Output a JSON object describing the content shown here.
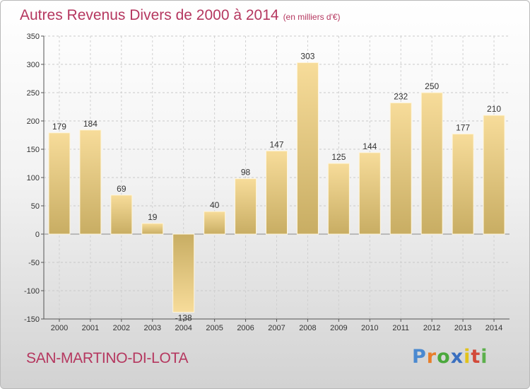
{
  "header": {
    "title": "Autres Revenus Divers de 2000 à 2014",
    "subtitle": "(en milliers d'€)"
  },
  "footer": {
    "location": "SAN-MARTINO-DI-LOTA",
    "brand": "Proxiti"
  },
  "colors": {
    "title": "#b5375f",
    "bar_light": "#f7dc9a",
    "bar_dark": "#c8ad63",
    "brand_letters": [
      "#4a89d0",
      "#e87e2a",
      "#4aa83c",
      "#3a6fbf",
      "#e2c21a",
      "#d24a3a",
      "#5cb04c"
    ]
  },
  "chart_data": {
    "type": "bar",
    "categories": [
      "2000",
      "2001",
      "2002",
      "2003",
      "2004",
      "2005",
      "2006",
      "2007",
      "2008",
      "2009",
      "2010",
      "2011",
      "2012",
      "2013",
      "2014"
    ],
    "values": [
      179,
      184,
      69,
      19,
      -138,
      40,
      98,
      147,
      303,
      125,
      144,
      232,
      250,
      177,
      210
    ],
    "data_labels": [
      "179",
      "184",
      "69",
      "19",
      "-138",
      "40",
      "98",
      "147",
      "303",
      "125",
      "144",
      "232",
      "250",
      "177",
      "210"
    ],
    "title": "Autres Revenus Divers de 2000 à 2014",
    "xlabel": "",
    "ylabel": "",
    "ylim": [
      -150,
      350
    ],
    "yticks": [
      -150,
      -100,
      -50,
      0,
      50,
      100,
      150,
      200,
      250,
      300,
      350
    ],
    "ytick_labels": [
      "-150",
      "-100",
      "-50",
      "0",
      "50",
      "100",
      "150",
      "200",
      "250",
      "300",
      "350"
    ],
    "grid": true,
    "legend": "none"
  }
}
